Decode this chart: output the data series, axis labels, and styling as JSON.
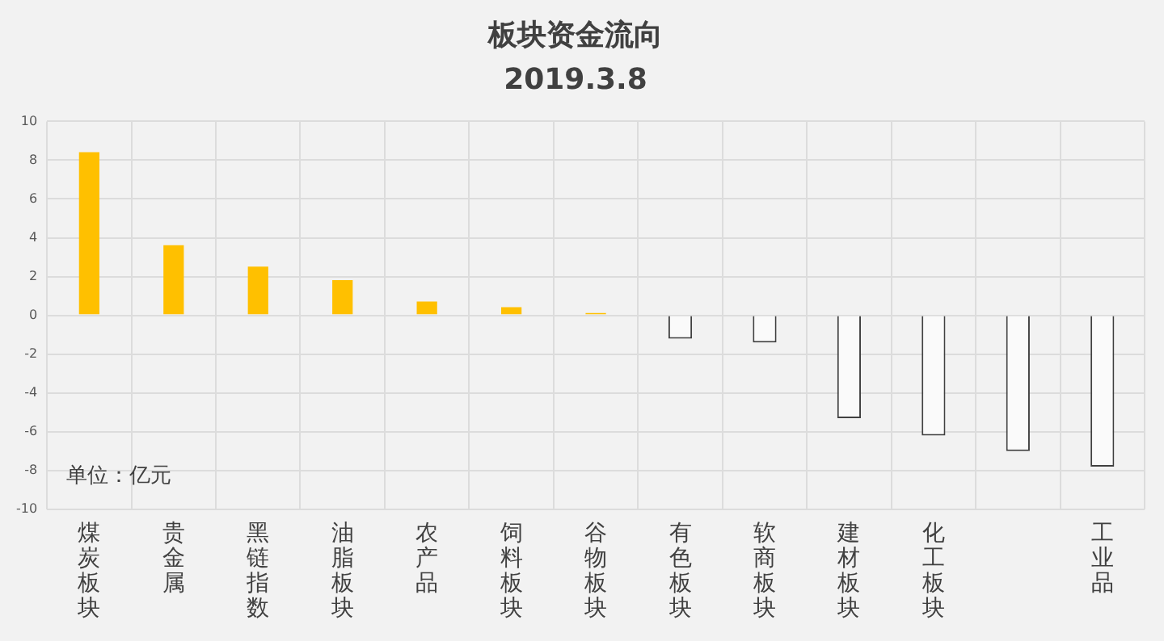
{
  "chart_data": {
    "type": "bar",
    "title": "板块资金流向",
    "subtitle": "2019.3.8",
    "categories": [
      "煤炭板块",
      "贵金属",
      "黑链指数",
      "油脂板块",
      "农产品",
      "饲料板块",
      "谷物板块",
      "有色板块",
      "软商板块",
      "建材板块",
      "化工板块",
      null,
      "工业品"
    ],
    "values": [
      8.5,
      3.7,
      2.6,
      1.9,
      0.8,
      0.5,
      0.2,
      -1.2,
      -1.4,
      -5.3,
      -6.2,
      -7.0,
      -7.8
    ],
    "colors": [
      "#ffc000",
      "#ffc000",
      "#ffc000",
      "#ffc000",
      "#ffc000",
      "#ffc000",
      "#ffc000",
      "#fafafa",
      "#fafafa",
      "#fafafa",
      "#fafafa",
      "#fafafa",
      "#fafafa"
    ],
    "ylim": [
      -10,
      10
    ],
    "yticks": [
      -10,
      -8,
      -6,
      -4,
      -2,
      0,
      2,
      4,
      6,
      8,
      10
    ],
    "grid": true,
    "annotations": [
      "单位：亿元"
    ]
  }
}
